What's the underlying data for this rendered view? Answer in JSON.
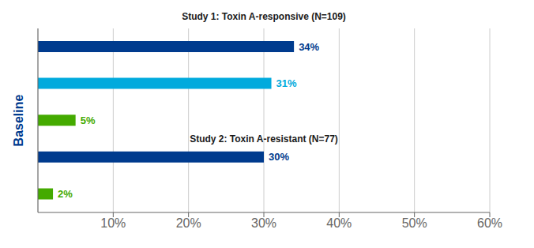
{
  "chart_data": {
    "type": "bar",
    "orientation": "horizontal",
    "categories": [
      null,
      null,
      null,
      null,
      null
    ],
    "values": [
      34,
      31,
      5,
      30,
      2
    ],
    "value_labels": [
      "34%",
      "31%",
      "5%",
      "30%",
      "2%"
    ],
    "data_labels": true,
    "colors": [
      "#003b8e",
      "#00aadd",
      "#44aa00",
      "#003b8e",
      "#44aa00"
    ],
    "xlim": [
      0,
      60
    ],
    "xticks": [
      {
        "value": 10,
        "label": "10%"
      },
      {
        "value": 20,
        "label": "20%"
      },
      {
        "value": 30,
        "label": "30%"
      },
      {
        "value": 40,
        "label": "40%"
      },
      {
        "value": 50,
        "label": "50%"
      },
      {
        "value": 60,
        "label": "60%"
      }
    ],
    "grid": true,
    "tick_labels": "x",
    "ylabel": "Baseline",
    "annotations": [
      "Study 1: Toxin A-responsive (N=109)",
      "Study 2: Toxin A-resistant (N=77)"
    ]
  }
}
